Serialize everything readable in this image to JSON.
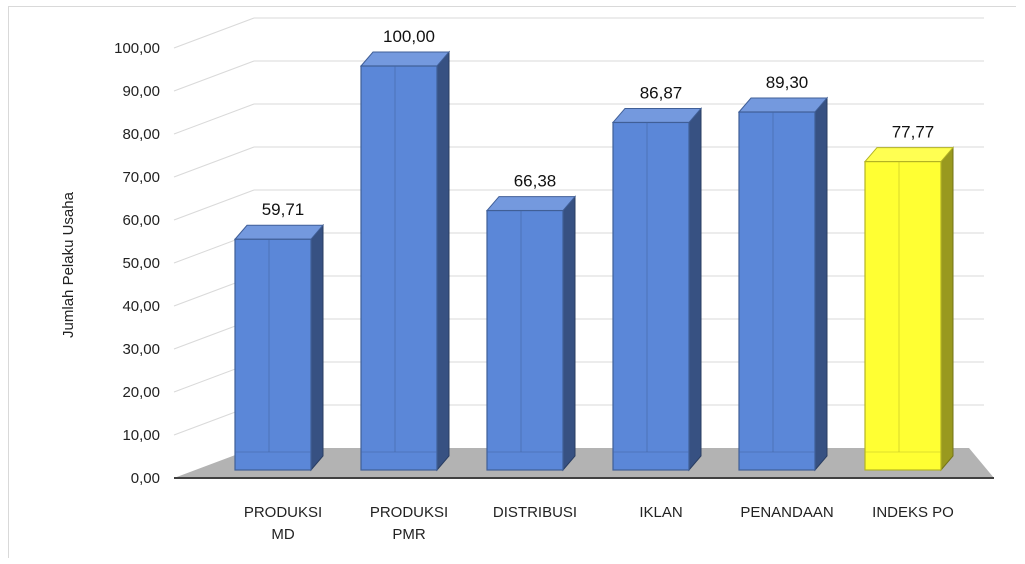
{
  "chart_data": {
    "type": "bar",
    "title": "",
    "xlabel": "",
    "ylabel": "Jumlah Pelaku Usaha",
    "ylim": [
      0,
      100
    ],
    "y_ticks": [
      "0,00",
      "10,00",
      "20,00",
      "30,00",
      "40,00",
      "50,00",
      "60,00",
      "70,00",
      "80,00",
      "90,00",
      "100,00"
    ],
    "categories": [
      [
        "PRODUKSI",
        "MD"
      ],
      [
        "PRODUKSI",
        "PMR"
      ],
      [
        "DISTRIBUSI"
      ],
      [
        "IKLAN"
      ],
      [
        "PENANDAAN"
      ],
      [
        "INDEKS PO"
      ]
    ],
    "values": [
      59.71,
      100.0,
      66.38,
      86.87,
      89.3,
      77.77
    ],
    "value_labels": [
      "59,71",
      "100,00",
      "66,38",
      "86,87",
      "89,30",
      "77,77"
    ],
    "grid": true,
    "legend": "none",
    "style": "3d-column",
    "colors": {
      "bar": "#5b87d8",
      "bar_highlight": "#ffff33",
      "floor": "#b3b3b3",
      "grid": "#d9d9d9",
      "axis": "#404040"
    },
    "highlight_index": 5
  }
}
